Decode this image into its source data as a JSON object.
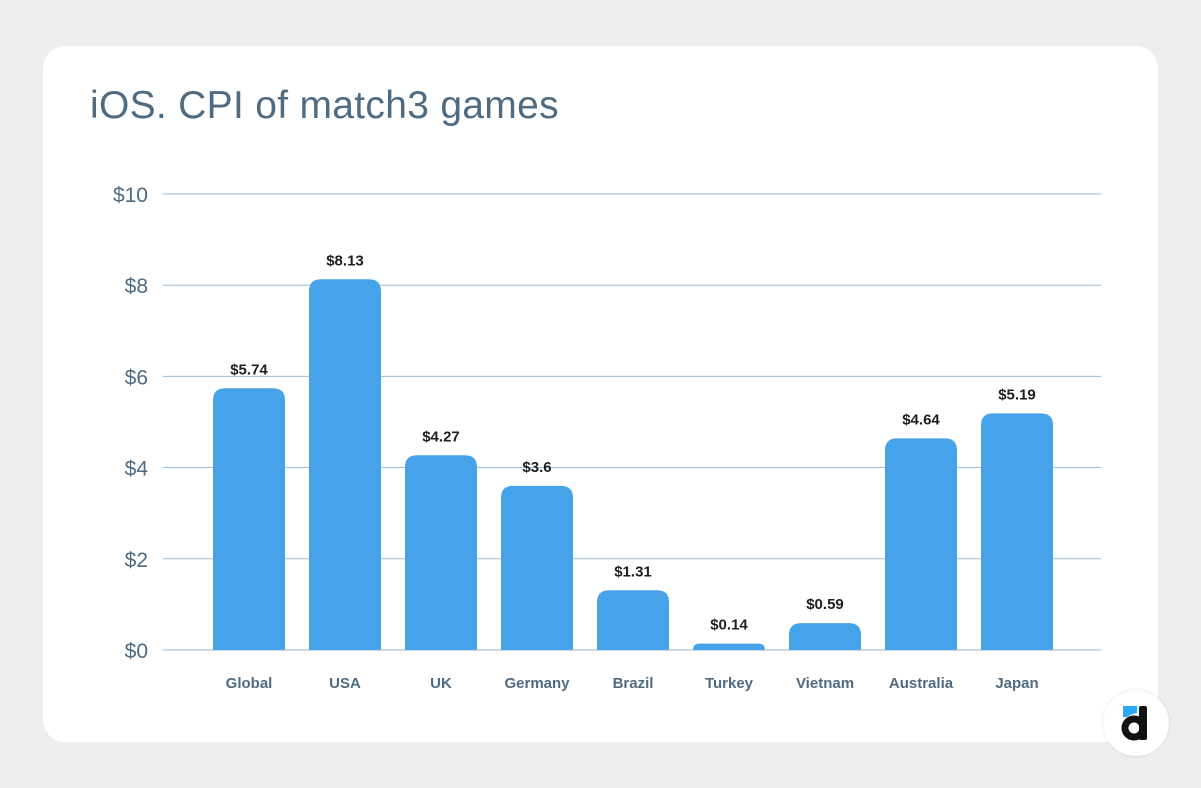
{
  "chart_data": {
    "type": "bar",
    "title": "iOS. CPI of match3 games",
    "categories": [
      "Global",
      "USA",
      "UK",
      "Germany",
      "Brazil",
      "Turkey",
      "Vietnam",
      "Australia",
      "Japan"
    ],
    "values": [
      5.74,
      8.13,
      4.27,
      3.6,
      1.31,
      0.14,
      0.59,
      4.64,
      5.19
    ],
    "data_labels": [
      "$5.74",
      "$8.13",
      "$4.27",
      "$3.6",
      "$1.31",
      "$0.14",
      "$0.59",
      "$4.64",
      "$5.19"
    ],
    "yticks": [
      0,
      2,
      4,
      6,
      8,
      10
    ],
    "ytick_labels": [
      "$0",
      "$2",
      "$4",
      "$6",
      "$8",
      "$10"
    ],
    "ylim": [
      0,
      10
    ],
    "xlabel": "",
    "ylabel": "",
    "grid": true,
    "colors": {
      "bar": "#46a3ea",
      "grid": "#9dbad0",
      "axis_text": "#4f6b82",
      "label_text": "#1e1e1e"
    }
  }
}
